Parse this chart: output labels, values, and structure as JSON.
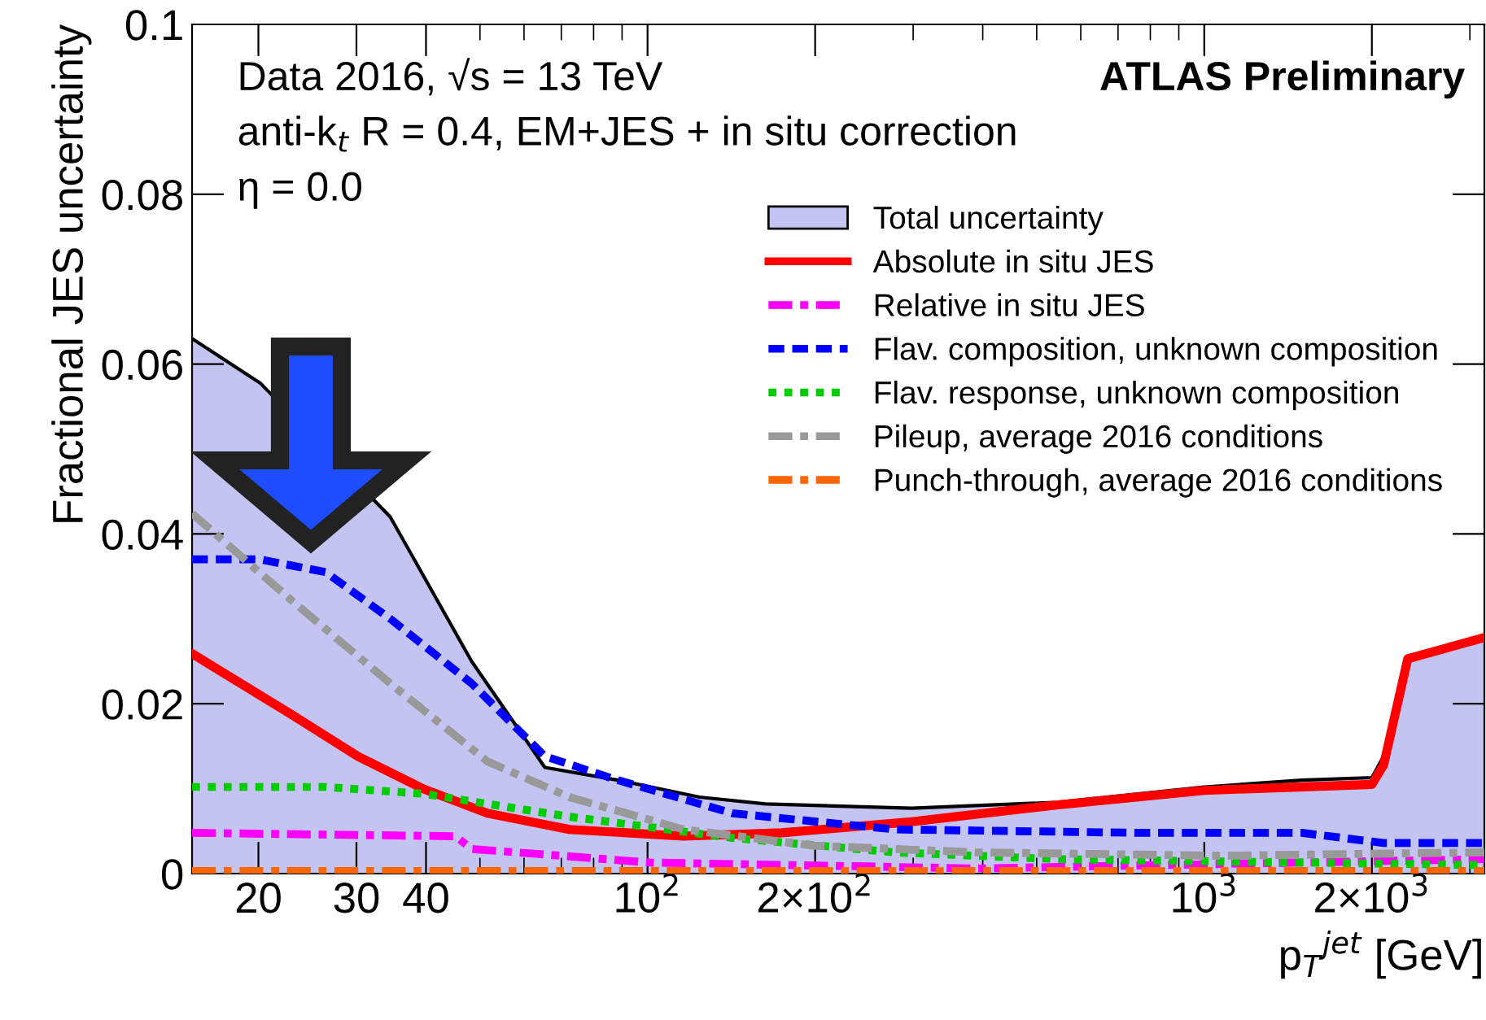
{
  "chart_data": {
    "type": "line",
    "ylabel": "Fractional JES uncertainty",
    "xlabel": "p$_{T}$$^{jet}$ [GeV]",
    "annotations": [
      "Data 2016, √s = 13 TeV",
      "anti-k$_{t}$ R = 0.4, EM+JES + in situ correction",
      "η = 0.0",
      "ATLAS Preliminary"
    ],
    "log": "x",
    "xlim": [
      15.2,
      3185
    ],
    "xticks": [
      20,
      30,
      40,
      {
        "value": 100,
        "label": "10$^{2}$"
      },
      {
        "value": 200,
        "label": "2×10$^{2}$"
      },
      {
        "value": 1000,
        "label": "10$^{3}$"
      },
      {
        "value": 2000,
        "label": "2×10$^{3}$"
      }
    ],
    "ylim": [
      0,
      0.1
    ],
    "yticks": [
      0,
      0.02,
      0.04,
      0.06,
      0.08,
      0.1
    ],
    "grid": false,
    "legend": "right",
    "series": [
      {
        "name": "Total uncertainty",
        "type": "area",
        "color": "#c4c4f2",
        "x": [
          15.2,
          20.2,
          34.5,
          48.3,
          65.4,
          88.5,
          124,
          163,
          298,
          546,
          1000,
          1497,
          2000,
          2140,
          2320,
          3185
        ],
        "values": [
          0.063,
          0.0577,
          0.042,
          0.025,
          0.0125,
          0.011,
          0.009,
          0.0082,
          0.0077,
          0.0084,
          0.0102,
          0.011,
          0.0113,
          0.0148,
          0.025,
          0.0278
        ]
      },
      {
        "name": "Absolute in situ JES",
        "color": "#ff0000",
        "line_style": "solid",
        "x": [
          15.2,
          23.1,
          30.2,
          39.5,
          51.6,
          72.4,
          116,
          174,
          298,
          546,
          1000,
          2000,
          2100,
          2320,
          3185
        ],
        "values": [
          0.0259,
          0.0186,
          0.0138,
          0.01,
          0.0071,
          0.0052,
          0.0044,
          0.0048,
          0.0061,
          0.0081,
          0.0098,
          0.0105,
          0.0128,
          0.0253,
          0.0278
        ]
      },
      {
        "name": "Relative in situ JES",
        "color": "#ff00ff",
        "line_style": "dashdot",
        "x": [
          15.2,
          45.2,
          48.3,
          101,
          390,
          3185
        ],
        "values": [
          0.0048,
          0.0044,
          0.0029,
          0.0013,
          0.0006,
          0.0017
        ]
      },
      {
        "name": "Flav. composition, unknown composition",
        "color": "#0000ff",
        "line_style": "dashed",
        "x": [
          15.2,
          20.1,
          26.4,
          34.5,
          48.3,
          65.4,
          88.5,
          142,
          278,
          764,
          1497,
          2100,
          3185
        ],
        "values": [
          0.037,
          0.037,
          0.0355,
          0.03,
          0.0224,
          0.0138,
          0.011,
          0.0071,
          0.0052,
          0.0048,
          0.0048,
          0.0036,
          0.0036
        ]
      },
      {
        "name": "Flav. response, unknown composition",
        "color": "#00cc00",
        "line_style": "dotted",
        "x": [
          15.2,
          26.4,
          39.5,
          72.4,
          142,
          278,
          546,
          3185
        ],
        "values": [
          0.0102,
          0.0102,
          0.0094,
          0.0067,
          0.0042,
          0.0025,
          0.0017,
          0.001
        ]
      },
      {
        "name": "Pileup, average 2016 conditions",
        "color": "#999999",
        "line_style": "dashdot",
        "x": [
          15.2,
          23.1,
          34.5,
          51.6,
          72.4,
          116,
          198,
          390,
          1070,
          3185
        ],
        "values": [
          0.0424,
          0.032,
          0.0224,
          0.0132,
          0.009,
          0.0052,
          0.0033,
          0.0025,
          0.0021,
          0.0025
        ]
      },
      {
        "name": "Punch-through, average 2016 conditions",
        "color": "#ff6600",
        "line_style": "dashdot",
        "x": [
          15.2,
          3185
        ],
        "values": [
          0.0003,
          0.0003
        ]
      }
    ]
  }
}
